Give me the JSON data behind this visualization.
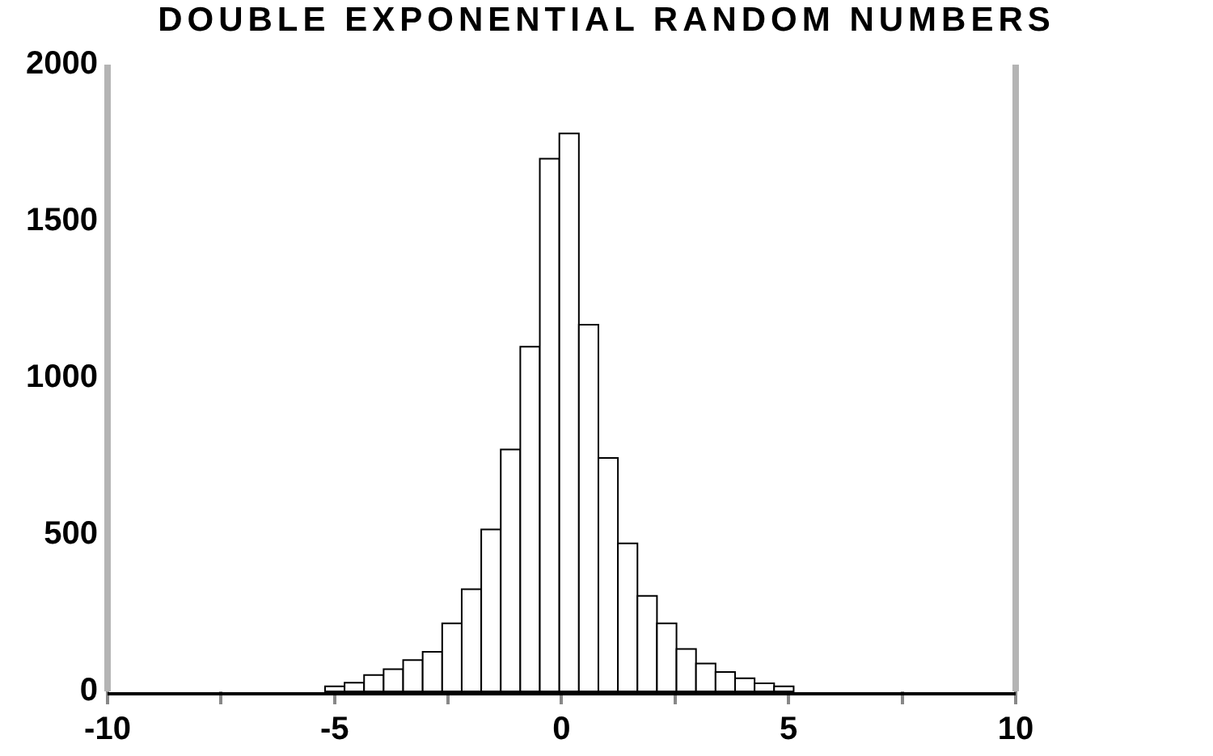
{
  "chart_data": {
    "type": "histogram",
    "title": "DOUBLE EXPONENTIAL RANDOM NUMBERS",
    "bins": [
      -5.21,
      -4.78,
      -4.35,
      -3.92,
      -3.49,
      -3.06,
      -2.63,
      -2.2,
      -1.77,
      -1.34,
      -0.91,
      -0.48,
      -0.05,
      0.38,
      0.81,
      1.24,
      1.67,
      2.1,
      2.53,
      2.96,
      3.39,
      3.82,
      4.25,
      4.68,
      5.11
    ],
    "values": [
      16,
      28,
      52,
      71,
      100,
      126,
      217,
      326,
      517,
      772,
      1100,
      1700,
      1780,
      1170,
      745,
      472,
      305,
      217,
      135,
      89,
      62,
      42,
      26,
      16
    ],
    "color": "#ffffff",
    "xlim": [
      -10,
      10
    ],
    "xticks": [
      -10,
      {
        "value": -7.5,
        "label": null
      },
      -5,
      {
        "value": -2.5,
        "label": null
      },
      0,
      {
        "value": 2.5,
        "label": null
      },
      5,
      {
        "value": 7.5,
        "label": null
      },
      10
    ],
    "ylim": [
      0,
      2000
    ],
    "yticks": [
      0,
      500,
      1000,
      1500,
      2000
    ],
    "grid": false,
    "legend": false
  }
}
